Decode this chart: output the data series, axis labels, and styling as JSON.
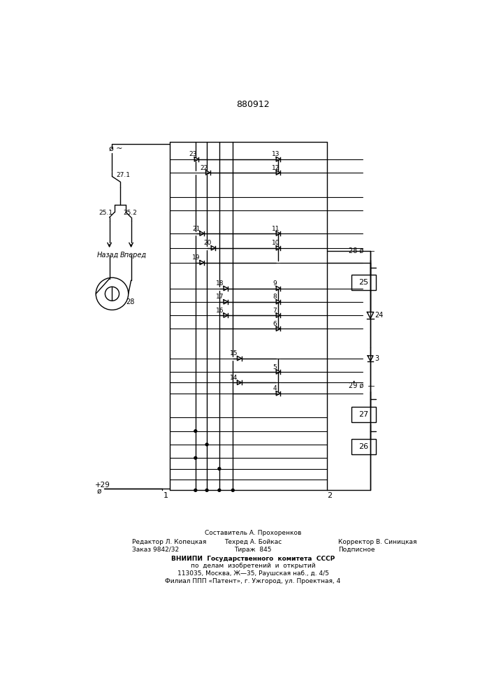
{
  "title": "880912",
  "bg_color": "#ffffff",
  "line_color": "#000000",
  "footer": {
    "line1": "Составитель А. Прохоренков",
    "line2_left": "Редактор Л. Копецкая",
    "line2_mid": "Техред А. Бойкас",
    "line2_right": "Корректор В. Синицкая",
    "line3_left": "Заказ 9842/32",
    "line3_mid": "Тираж  845",
    "line3_right": "Подписное",
    "line4": "ВНИИПИ  Государственного  комитета  СССР",
    "line5": "по  делам  изобретений  и  открытий",
    "line6": "113035, Москва, Ж—35, Раушская наб., д. 4/5",
    "line7": "Филиал ППП «Патент», г. Ужгород, ул. Проектная, 4"
  }
}
